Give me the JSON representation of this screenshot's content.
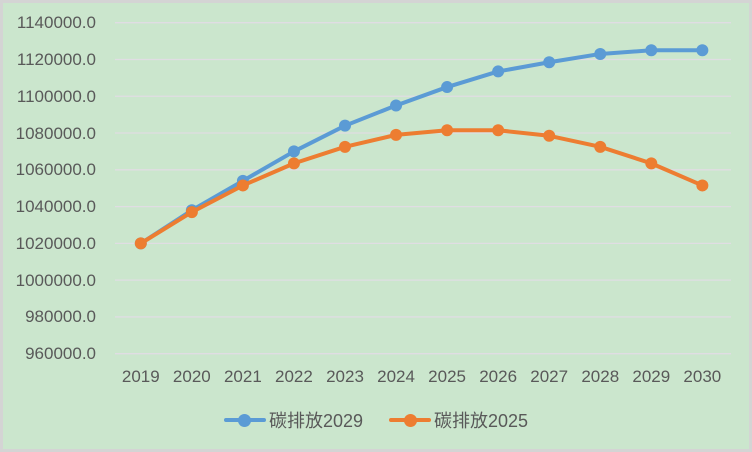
{
  "chart_data": {
    "type": "line",
    "title": "",
    "categories": [
      "2019",
      "2020",
      "2021",
      "2022",
      "2023",
      "2024",
      "2025",
      "2026",
      "2027",
      "2028",
      "2029",
      "2030"
    ],
    "series": [
      {
        "name": "碳排放2029",
        "color": "#5B9BD5",
        "values": [
          1020000,
          1038000,
          1054000,
          1070000,
          1084000,
          1095000,
          1105000,
          1113500,
          1118500,
          1123000,
          1125000,
          1125000
        ]
      },
      {
        "name": "碳排放2025",
        "color": "#ED7D31",
        "values": [
          1020000,
          1037000,
          1051500,
          1063500,
          1072500,
          1079000,
          1081500,
          1081500,
          1078500,
          1072500,
          1063500,
          1051500
        ]
      }
    ],
    "y_axis": {
      "min": 960000,
      "max": 1140000,
      "step": 20000,
      "tick_labels": [
        "1140000.0",
        "1120000.0",
        "1100000.0",
        "1080000.0",
        "1060000.0",
        "1040000.0",
        "1020000.0",
        "1000000.0",
        "980000.0",
        "960000.0"
      ]
    },
    "x_axis": {
      "label": ""
    },
    "legend_position": "bottom",
    "grid": true
  },
  "colors": {
    "background": "#CBE6CD",
    "gridline": "#E0DDE3",
    "text": "#595959",
    "border": "#D4D4D4"
  }
}
